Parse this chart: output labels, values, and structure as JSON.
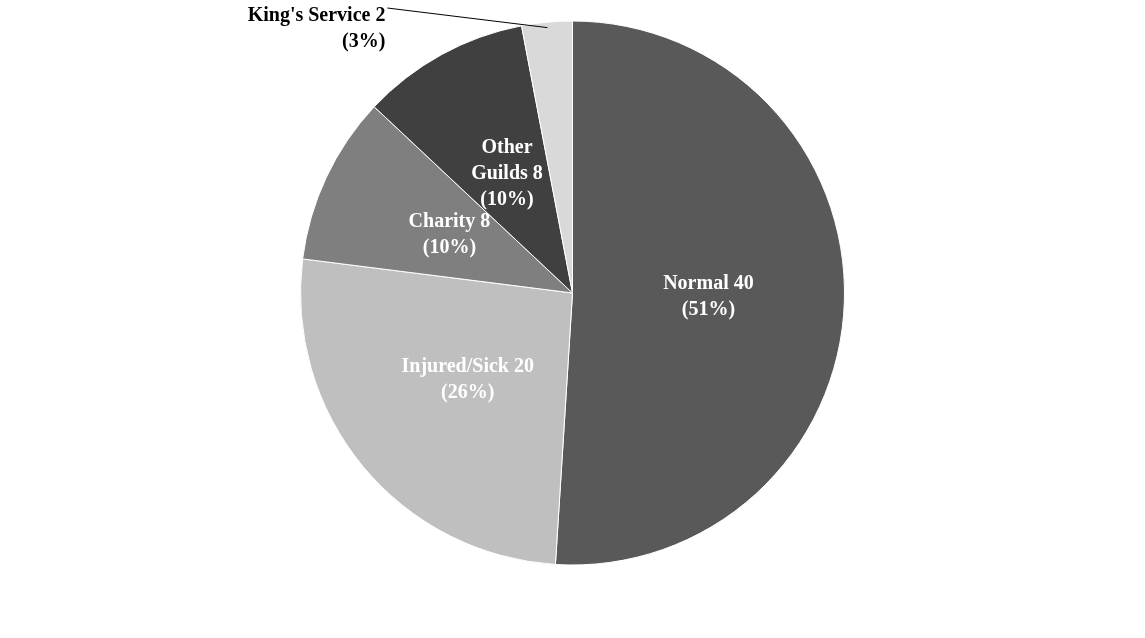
{
  "chart_data": {
    "type": "pie",
    "categories": [
      "Normal 40",
      "Injured/Sick 20",
      "Charity 8",
      "Other Guilds 8",
      "King's Service 2"
    ],
    "values": [
      51,
      26,
      10,
      10,
      3
    ],
    "colors": [
      "#595959",
      "#bfbfbf",
      "#7f7f7f",
      "#404040",
      "#d9d9d9"
    ],
    "value_labels": [
      "(51%)",
      "(26%)",
      "(10%)",
      "(10%)",
      "(3%)"
    ],
    "legend": false
  }
}
